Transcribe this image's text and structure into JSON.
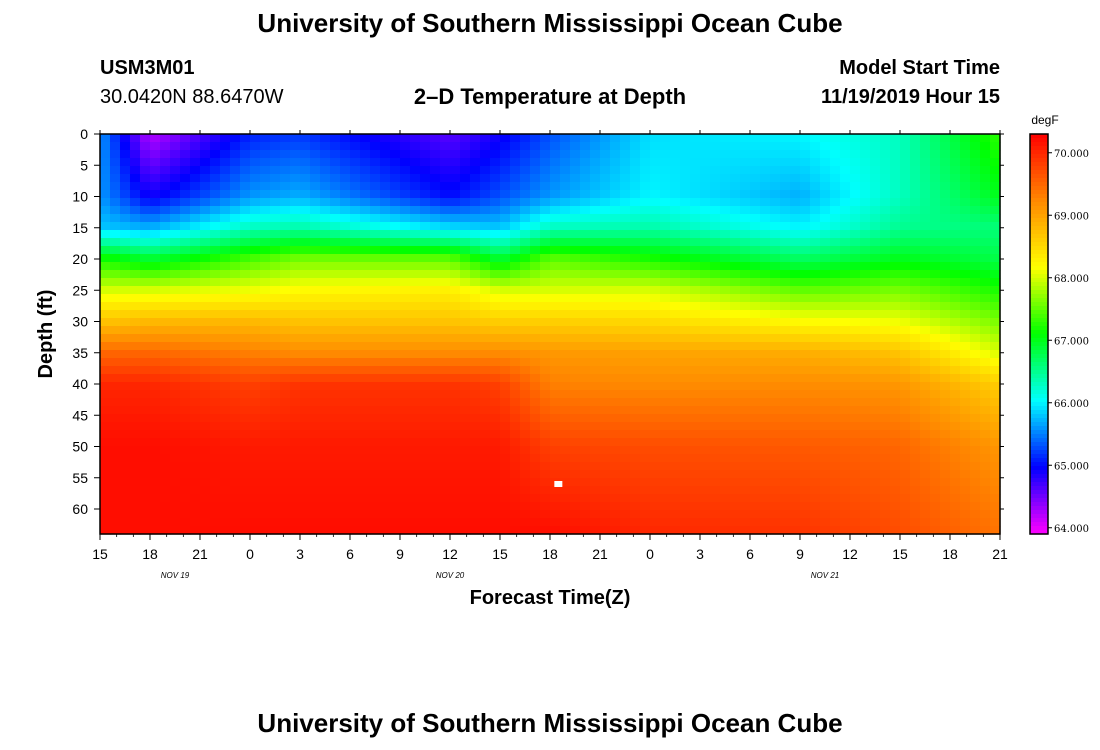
{
  "header": {
    "top_title": "University of Southern Mississippi Ocean Cube",
    "bottom_title": "University of Southern Mississippi Ocean Cube",
    "station_id": "USM3M01",
    "coordinates": "30.0420N 88.6470W",
    "plot_title": "2–D Temperature at Depth",
    "model_start_label": "Model Start Time",
    "model_start_value": "11/19/2019 Hour 15"
  },
  "colors": {
    "colormap": [
      "#ff00ff",
      "#0000ff",
      "#00ffff",
      "#00ff00",
      "#ffff00",
      "#ff8800",
      "#ff0000"
    ],
    "marker": "#ffffff"
  },
  "chart_data": {
    "type": "heatmap",
    "title": "2–D Temperature at Depth",
    "xlabel": "Forecast Time(Z)",
    "ylabel": "Depth (ft)",
    "x_range_hours": [
      0,
      54
    ],
    "x_ticks": [
      "15",
      "18",
      "21",
      "0",
      "3",
      "6",
      "9",
      "12",
      "15",
      "18",
      "21",
      "0",
      "3",
      "6",
      "9",
      "12",
      "15",
      "18",
      "21"
    ],
    "date_labels": [
      {
        "label": "NOV 19",
        "hour": 4.5
      },
      {
        "label": "NOV 20",
        "hour": 21
      },
      {
        "label": "NOV 21",
        "hour": 43.5
      }
    ],
    "y_ticks": [
      "0",
      "5",
      "10",
      "15",
      "20",
      "25",
      "30",
      "35",
      "40",
      "45",
      "50",
      "55",
      "60"
    ],
    "y_range_ft": [
      0,
      64
    ],
    "colorbar": {
      "unit": "degF",
      "ticks": [
        "70.000",
        "69.000",
        "68.000",
        "67.000",
        "66.000",
        "65.000",
        "64.000"
      ],
      "range": [
        63.9,
        70.3
      ]
    },
    "marker": {
      "hour": 27.5,
      "depth": 56
    },
    "profiles": [
      {
        "hour": 0,
        "depth": [
          0,
          10,
          15,
          20,
          25,
          30,
          35,
          40,
          50,
          64
        ],
        "temp": [
          65.6,
          65.6,
          65.8,
          67.2,
          68.0,
          68.7,
          69.5,
          70.0,
          70.2,
          70.2
        ]
      },
      {
        "hour": 3,
        "depth": [
          0,
          10,
          15,
          20,
          25,
          30,
          35,
          40,
          50,
          64
        ],
        "temp": [
          64.2,
          64.9,
          65.7,
          66.9,
          68.0,
          68.8,
          69.5,
          70.0,
          70.2,
          70.2
        ]
      },
      {
        "hour": 9,
        "depth": [
          0,
          10,
          15,
          20,
          25,
          30,
          35,
          40,
          50,
          64
        ],
        "temp": [
          65.1,
          65.6,
          66.3,
          67.4,
          68.1,
          68.8,
          69.3,
          69.8,
          70.1,
          70.2
        ]
      },
      {
        "hour": 12,
        "depth": [
          0,
          10,
          15,
          20,
          25,
          30,
          35,
          40,
          50,
          64
        ],
        "temp": [
          65.2,
          65.7,
          66.4,
          67.6,
          68.2,
          68.7,
          69.2,
          69.9,
          70.1,
          70.2
        ]
      },
      {
        "hour": 21,
        "depth": [
          0,
          10,
          15,
          20,
          25,
          30,
          35,
          40,
          50,
          64
        ],
        "temp": [
          64.6,
          65.0,
          65.9,
          67.5,
          68.3,
          68.7,
          69.2,
          69.9,
          70.1,
          70.2
        ]
      },
      {
        "hour": 24,
        "depth": [
          0,
          10,
          15,
          20,
          25,
          30,
          35,
          40,
          50,
          64
        ],
        "temp": [
          64.9,
          65.3,
          65.8,
          66.9,
          68.0,
          68.6,
          69.2,
          69.8,
          70.1,
          70.2
        ]
      },
      {
        "hour": 27,
        "depth": [
          0,
          10,
          15,
          20,
          25,
          30,
          35,
          40,
          50,
          64
        ],
        "temp": [
          65.3,
          65.6,
          66.3,
          67.5,
          68.0,
          68.6,
          69.1,
          69.3,
          69.8,
          70.2
        ]
      },
      {
        "hour": 33,
        "depth": [
          0,
          10,
          15,
          20,
          25,
          30,
          35,
          40,
          50,
          64
        ],
        "temp": [
          65.9,
          66.0,
          66.4,
          67.2,
          68.0,
          68.5,
          69.0,
          69.2,
          69.7,
          70.0
        ]
      },
      {
        "hour": 42,
        "depth": [
          0,
          10,
          15,
          20,
          25,
          30,
          35,
          40,
          50,
          64
        ],
        "temp": [
          66.0,
          65.7,
          66.0,
          66.7,
          67.5,
          68.2,
          68.9,
          69.2,
          69.6,
          69.9
        ]
      },
      {
        "hour": 48,
        "depth": [
          0,
          10,
          15,
          20,
          25,
          30,
          35,
          40,
          50,
          64
        ],
        "temp": [
          66.3,
          66.3,
          66.5,
          67.0,
          67.6,
          68.1,
          68.7,
          69.1,
          69.5,
          69.7
        ]
      },
      {
        "hour": 54,
        "depth": [
          0,
          10,
          15,
          20,
          25,
          30,
          35,
          40,
          50,
          64
        ],
        "temp": [
          67.3,
          67.0,
          66.6,
          66.8,
          67.2,
          67.6,
          68.0,
          68.6,
          69.1,
          69.4
        ]
      }
    ]
  }
}
